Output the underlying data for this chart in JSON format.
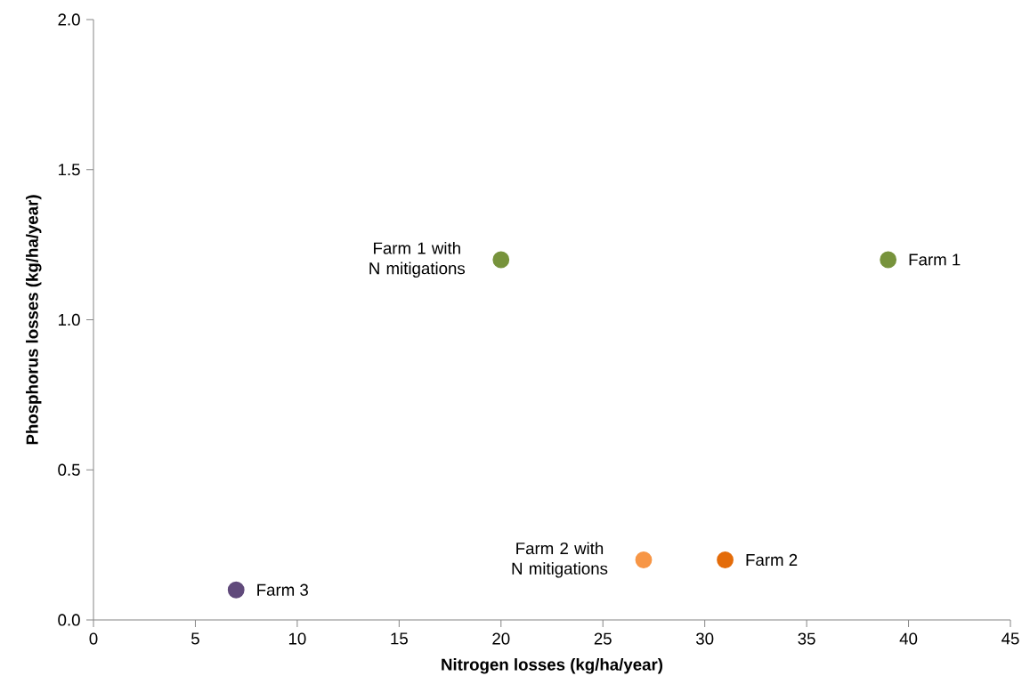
{
  "chart_data": {
    "type": "scatter",
    "xlabel": "Nitrogen losses (kg/ha/year)",
    "ylabel": "Phosphorus losses (kg/ha/year)",
    "xlim": [
      0,
      45
    ],
    "ylim": [
      0,
      2
    ],
    "xticks": [
      0,
      5,
      10,
      15,
      20,
      25,
      30,
      35,
      40,
      45
    ],
    "yticks": [
      {
        "value": 0,
        "label": "0.0"
      },
      {
        "value": 0.5,
        "label": "0.5"
      },
      {
        "value": 1,
        "label": "1.0"
      },
      {
        "value": 1.5,
        "label": "1.5"
      },
      {
        "value": 2,
        "label": "2.0"
      }
    ],
    "marker": "circle",
    "grid": false,
    "legend": false,
    "series": [
      {
        "name": "Farm 1",
        "color": "#77933c",
        "x": [
          39
        ],
        "values": [
          1.2
        ]
      },
      {
        "name": "Farm 1 with N mitigations",
        "color": "#77933c",
        "x": [
          20
        ],
        "values": [
          1.2
        ]
      },
      {
        "name": "Farm 2",
        "color": "#e46c0a",
        "x": [
          31
        ],
        "values": [
          0.2
        ]
      },
      {
        "name": "Farm 2 with N mitigations",
        "color": "#f79646",
        "x": [
          27
        ],
        "values": [
          0.2
        ]
      },
      {
        "name": "Farm 3",
        "color": "#604a7b",
        "x": [
          7
        ],
        "values": [
          0.1
        ]
      }
    ]
  }
}
